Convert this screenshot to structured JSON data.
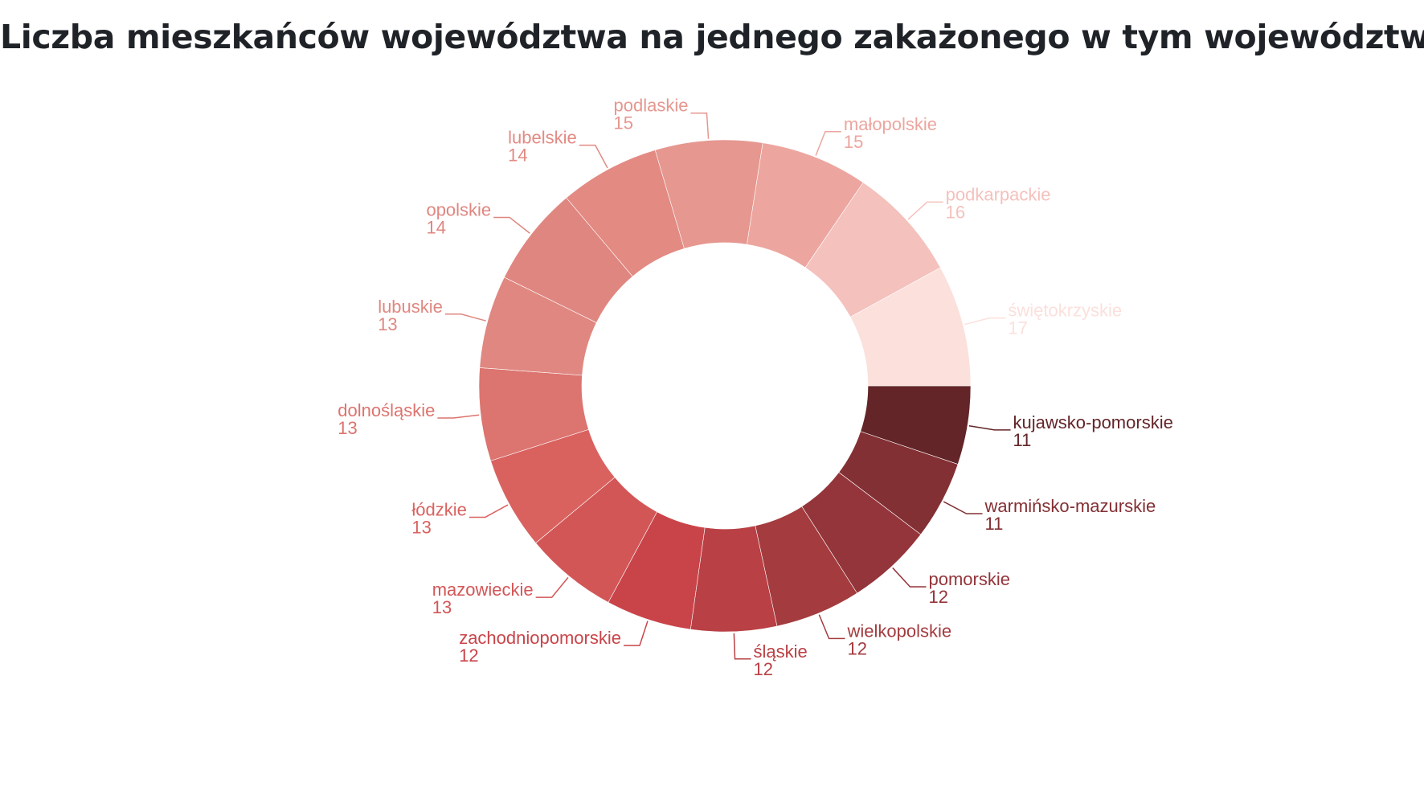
{
  "chart_data": {
    "type": "pie",
    "donut": true,
    "title": "Liczba mieszkańców województwa na jednego zakażonego w tym województwie",
    "legend": "none",
    "slices": [
      {
        "label": "kujawsko-pomorskie",
        "value": 11,
        "color": "#632528"
      },
      {
        "label": "warmińsko-mazurskie",
        "value": 11,
        "color": "#833034"
      },
      {
        "label": "pomorskie",
        "value": 12,
        "color": "#93353A"
      },
      {
        "label": "wielkopolskie",
        "value": 12,
        "color": "#A43B3E"
      },
      {
        "label": "śląskie",
        "value": 12,
        "color": "#B94045"
      },
      {
        "label": "zachodniopomorskie",
        "value": 12,
        "color": "#C94449"
      },
      {
        "label": "mazowieckie",
        "value": 13,
        "color": "#D35657"
      },
      {
        "label": "łódzkie",
        "value": 13,
        "color": "#D9625F"
      },
      {
        "label": "dolnośląskie",
        "value": 13,
        "color": "#DC746F"
      },
      {
        "label": "lubuskie",
        "value": 13,
        "color": "#E08781"
      },
      {
        "label": "opolskie",
        "value": 14,
        "color": "#E08680"
      },
      {
        "label": "lubelskie",
        "value": 14,
        "color": "#E38A83"
      },
      {
        "label": "podlaskie",
        "value": 15,
        "color": "#E6978F"
      },
      {
        "label": "małopolskie",
        "value": 15,
        "color": "#ECA69F"
      },
      {
        "label": "podkarpackie",
        "value": 16,
        "color": "#F4C1BD"
      },
      {
        "label": "świętokrzyskie",
        "value": 17,
        "color": "#FBE0DC"
      }
    ]
  }
}
